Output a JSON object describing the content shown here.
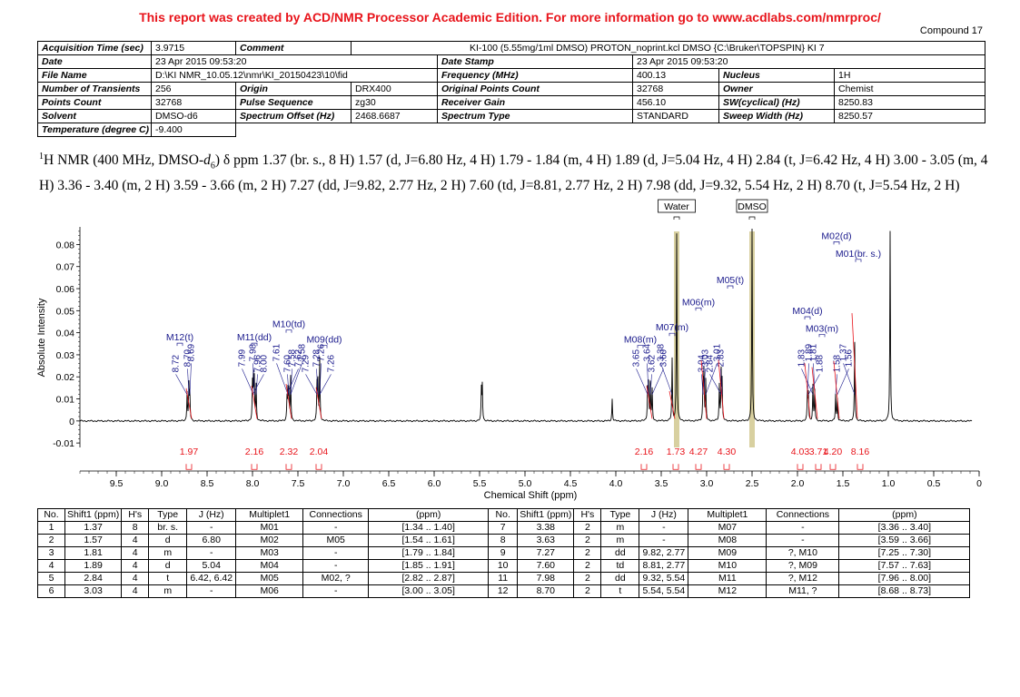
{
  "banner": "This report was created by ACD/NMR Processor Academic Edition. For more information go to www.acdlabs.com/nmrproc/",
  "compound": "Compound 17",
  "acq": {
    "acq_time_label": "Acquisition Time (sec)",
    "acq_time": "3.9715",
    "comment_label": "Comment",
    "comment": "KI-100 (5.55mg/1ml DMSO) PROTON_noprint.kcl DMSO {C:\\Bruker\\TOPSPIN} KI 7",
    "date_label": "Date",
    "date": "23 Apr 2015 09:53:20",
    "date_stamp_label": "Date Stamp",
    "date_stamp": "23 Apr 2015 09:53:20",
    "file_label": "File Name",
    "file": "D:\\KI NMR_10.05.12\\nmr\\KI_20150423\\10\\fid",
    "freq_label": "Frequency (MHz)",
    "freq": "400.13",
    "nucleus_label": "Nucleus",
    "nucleus": "1H",
    "transients_label": "Number of Transients",
    "transients": "256",
    "origin_label": "Origin",
    "origin": "DRX400",
    "opc_label": "Original Points Count",
    "opc": "32768",
    "owner_label": "Owner",
    "owner": "Chemist",
    "points_label": "Points Count",
    "points": "32768",
    "pulse_label": "Pulse Sequence",
    "pulse": "zg30",
    "gain_label": "Receiver Gain",
    "gain": "456.10",
    "sw_label": "SW(cyclical) (Hz)",
    "sw": "8250.83",
    "solvent_label": "Solvent",
    "solvent": "DMSO-d6",
    "offset_label": "Spectrum Offset (Hz)",
    "offset": "2468.6687",
    "type_label": "Spectrum Type",
    "type": "STANDARD",
    "sweep_label": "Sweep Width (Hz)",
    "sweep": "8250.57",
    "temp_label": "Temperature (degree C)",
    "temp": "-9.400"
  },
  "description": {
    "pre": "H NMR (400 MHz, DMSO-",
    "d": "d",
    "sub6": "6",
    "post": ") δ ppm 1.37 (br. s., 8 H) 1.57 (d, J=6.80 Hz, 4 H) 1.79 - 1.84 (m, 4 H) 1.89 (d, J=5.04 Hz, 4 H) 2.84 (t, J=6.42 Hz, 4 H) 3.00 - 3.05 (m, 4 H) 3.36 - 3.40 (m, 2 H) 3.59 - 3.66 (m, 2 H) 7.27 (dd, J=9.82, 2.77 Hz, 2 H) 7.60 (td, J=8.81, 2.77 Hz, 2 H) 7.98 (dd, J=9.32, 5.54 Hz, 2 H) 8.70 (t, J=5.54 Hz, 2 H)",
    "sup1": "1"
  },
  "chart_data": {
    "type": "line",
    "xlabel": "Chemical Shift (ppm)",
    "ylabel": "Absolute Intensity",
    "xlim": [
      9.9,
      0.0
    ],
    "ylim": [
      -0.012,
      0.088
    ],
    "xticks": [
      "9.5",
      "9.0",
      "8.5",
      "8.0",
      "7.5",
      "7.0",
      "6.5",
      "6.0",
      "5.5",
      "5.0",
      "4.5",
      "4.0",
      "3.5",
      "3.0",
      "2.5",
      "2.0",
      "1.5",
      "1.0",
      "0.5",
      "0"
    ],
    "yticks": [
      "0.08",
      "0.07",
      "0.06",
      "0.05",
      "0.04",
      "0.03",
      "0.02",
      "0.01",
      "0",
      "-0.01"
    ],
    "peaks": [
      {
        "ppm": 8.72,
        "h": 0.013
      },
      {
        "ppm": 8.7,
        "h": 0.016
      },
      {
        "ppm": 8.69,
        "h": 0.012
      },
      {
        "ppm": 8.0,
        "h": 0.016
      },
      {
        "ppm": 7.99,
        "h": 0.018
      },
      {
        "ppm": 7.98,
        "h": 0.018
      },
      {
        "ppm": 7.96,
        "h": 0.016
      },
      {
        "ppm": 7.62,
        "h": 0.01
      },
      {
        "ppm": 7.61,
        "h": 0.013
      },
      {
        "ppm": 7.6,
        "h": 0.013
      },
      {
        "ppm": 7.58,
        "h": 0.011
      },
      {
        "ppm": 7.58,
        "h": 0.009
      },
      {
        "ppm": 7.29,
        "h": 0.016
      },
      {
        "ppm": 7.28,
        "h": 0.017
      },
      {
        "ppm": 7.26,
        "h": 0.015
      },
      {
        "ppm": 7.26,
        "h": 0.013
      },
      {
        "ppm": 5.48,
        "h": 0.014
      },
      {
        "ppm": 5.47,
        "h": 0.016
      },
      {
        "ppm": 4.04,
        "h": 0.01
      },
      {
        "ppm": 3.65,
        "h": 0.014
      },
      {
        "ppm": 3.64,
        "h": 0.016
      },
      {
        "ppm": 3.62,
        "h": 0.017
      },
      {
        "ppm": 3.6,
        "h": 0.014
      },
      {
        "ppm": 3.38,
        "h": 0.028
      },
      {
        "ppm": 3.33,
        "h": 0.085
      },
      {
        "ppm": 3.04,
        "h": 0.017
      },
      {
        "ppm": 3.03,
        "h": 0.022
      },
      {
        "ppm": 3.01,
        "h": 0.018
      },
      {
        "ppm": 2.86,
        "h": 0.016
      },
      {
        "ppm": 2.84,
        "h": 0.022
      },
      {
        "ppm": 2.83,
        "h": 0.017
      },
      {
        "ppm": 2.5,
        "h": 0.087
      },
      {
        "ppm": 1.89,
        "h": 0.014
      },
      {
        "ppm": 1.88,
        "h": 0.012
      },
      {
        "ppm": 1.83,
        "h": 0.016
      },
      {
        "ppm": 1.81,
        "h": 0.014
      },
      {
        "ppm": 1.58,
        "h": 0.012
      },
      {
        "ppm": 1.56,
        "h": 0.01
      },
      {
        "ppm": 1.37,
        "h": 0.036
      },
      {
        "ppm": 0.98,
        "h": 0.086
      }
    ],
    "peak_labels": [
      {
        "ppm": 8.72,
        "text": "8.72"
      },
      {
        "ppm": 8.7,
        "text": "8.70"
      },
      {
        "ppm": 8.69,
        "text": "8.69"
      },
      {
        "ppm": 8.0,
        "text": "8.00"
      },
      {
        "ppm": 7.99,
        "text": "7.99"
      },
      {
        "ppm": 7.98,
        "text": "7.98"
      },
      {
        "ppm": 7.96,
        "text": "7.96"
      },
      {
        "ppm": 7.62,
        "text": "7.62"
      },
      {
        "ppm": 7.61,
        "text": "7.61"
      },
      {
        "ppm": 7.6,
        "text": "7.60"
      },
      {
        "ppm": 7.58,
        "text": "7.58"
      },
      {
        "ppm": 7.58,
        "text": "7.58"
      },
      {
        "ppm": 7.29,
        "text": "7.29"
      },
      {
        "ppm": 7.28,
        "text": "7.28"
      },
      {
        "ppm": 7.26,
        "text": "7.26"
      },
      {
        "ppm": 7.26,
        "text": "7.26"
      },
      {
        "ppm": 3.65,
        "text": "3.65"
      },
      {
        "ppm": 3.64,
        "text": "3.64"
      },
      {
        "ppm": 3.62,
        "text": "3.62"
      },
      {
        "ppm": 3.6,
        "text": "3.60"
      },
      {
        "ppm": 3.38,
        "text": "3.38"
      },
      {
        "ppm": 3.04,
        "text": "3.04"
      },
      {
        "ppm": 3.03,
        "text": "3.03"
      },
      {
        "ppm": 3.01,
        "text": "3.01"
      },
      {
        "ppm": 2.84,
        "text": "2.84"
      },
      {
        "ppm": 2.83,
        "text": "2.83"
      },
      {
        "ppm": 1.89,
        "text": "1.89"
      },
      {
        "ppm": 1.88,
        "text": "1.88"
      },
      {
        "ppm": 1.83,
        "text": "1.83"
      },
      {
        "ppm": 1.81,
        "text": "1.81"
      },
      {
        "ppm": 1.58,
        "text": "1.58"
      },
      {
        "ppm": 1.56,
        "text": "1.56"
      },
      {
        "ppm": 1.37,
        "text": "1.37"
      }
    ],
    "multiplets": [
      {
        "ppm": 8.7,
        "text": "M12(t)"
      },
      {
        "ppm": 7.98,
        "text": "M11(dd)"
      },
      {
        "ppm": 7.6,
        "text": "M10(td)"
      },
      {
        "ppm": 7.27,
        "text": "M09(dd)"
      },
      {
        "ppm": 3.63,
        "text": "M08(m)"
      },
      {
        "ppm": 3.38,
        "text": "M07(m)"
      },
      {
        "ppm": 3.03,
        "text": "M06(m)"
      },
      {
        "ppm": 2.84,
        "text": "M05(t)"
      },
      {
        "ppm": 1.89,
        "text": "M04(d)"
      },
      {
        "ppm": 1.81,
        "text": "M03(m)"
      },
      {
        "ppm": 1.57,
        "text": "M02(d)"
      },
      {
        "ppm": 1.37,
        "text": "M01(br. s.)"
      }
    ],
    "solvents": [
      {
        "ppm": 3.33,
        "text": "Water"
      },
      {
        "ppm": 2.5,
        "text": "DMSO"
      }
    ],
    "integrals": [
      {
        "ppm": 8.7,
        "text": "1.97"
      },
      {
        "ppm": 7.98,
        "text": "2.16"
      },
      {
        "ppm": 7.6,
        "text": "2.32"
      },
      {
        "ppm": 7.27,
        "text": "2.04"
      },
      {
        "ppm": 3.63,
        "text": "2.16"
      },
      {
        "ppm": 3.38,
        "text": "1.73"
      },
      {
        "ppm": 3.03,
        "text": "4.27"
      },
      {
        "ppm": 2.84,
        "text": "4.30"
      },
      {
        "ppm": 1.89,
        "text": "4.03"
      },
      {
        "ppm": 1.81,
        "text": "3.71"
      },
      {
        "ppm": 1.57,
        "text": "4.20"
      },
      {
        "ppm": 1.37,
        "text": "8.16"
      }
    ],
    "colors": {
      "trace": "#000000",
      "label": "#1a1a8c",
      "integral": "#e8141b",
      "solvent_band": "#d8d0a0"
    }
  },
  "table": {
    "headers": [
      "No.",
      "Shift1 (ppm)",
      "H's",
      "Type",
      "J (Hz)",
      "Multiplet1",
      "Connections",
      "(ppm)"
    ],
    "left": [
      [
        "1",
        "1.37",
        "8",
        "br. s.",
        "-",
        "M01",
        "-",
        "[1.34 .. 1.40]"
      ],
      [
        "2",
        "1.57",
        "4",
        "d",
        "6.80",
        "M02",
        "M05",
        "[1.54 .. 1.61]"
      ],
      [
        "3",
        "1.81",
        "4",
        "m",
        "-",
        "M03",
        "-",
        "[1.79 .. 1.84]"
      ],
      [
        "4",
        "1.89",
        "4",
        "d",
        "5.04",
        "M04",
        "-",
        "[1.85 .. 1.91]"
      ],
      [
        "5",
        "2.84",
        "4",
        "t",
        "6.42, 6.42",
        "M05",
        "M02, ?",
        "[2.82 .. 2.87]"
      ],
      [
        "6",
        "3.03",
        "4",
        "m",
        "-",
        "M06",
        "-",
        "[3.00 .. 3.05]"
      ]
    ],
    "right": [
      [
        "7",
        "3.38",
        "2",
        "m",
        "-",
        "M07",
        "-",
        "[3.36 .. 3.40]"
      ],
      [
        "8",
        "3.63",
        "2",
        "m",
        "-",
        "M08",
        "-",
        "[3.59 .. 3.66]"
      ],
      [
        "9",
        "7.27",
        "2",
        "dd",
        "9.82, 2.77",
        "M09",
        "?, M10",
        "[7.25 .. 7.30]"
      ],
      [
        "10",
        "7.60",
        "2",
        "td",
        "8.81, 2.77",
        "M10",
        "?, M09",
        "[7.57 .. 7.63]"
      ],
      [
        "11",
        "7.98",
        "2",
        "dd",
        "9.32, 5.54",
        "M11",
        "?, M12",
        "[7.96 .. 8.00]"
      ],
      [
        "12",
        "8.70",
        "2",
        "t",
        "5.54, 5.54",
        "M12",
        "M11, ?",
        "[8.68 .. 8.73]"
      ]
    ]
  }
}
